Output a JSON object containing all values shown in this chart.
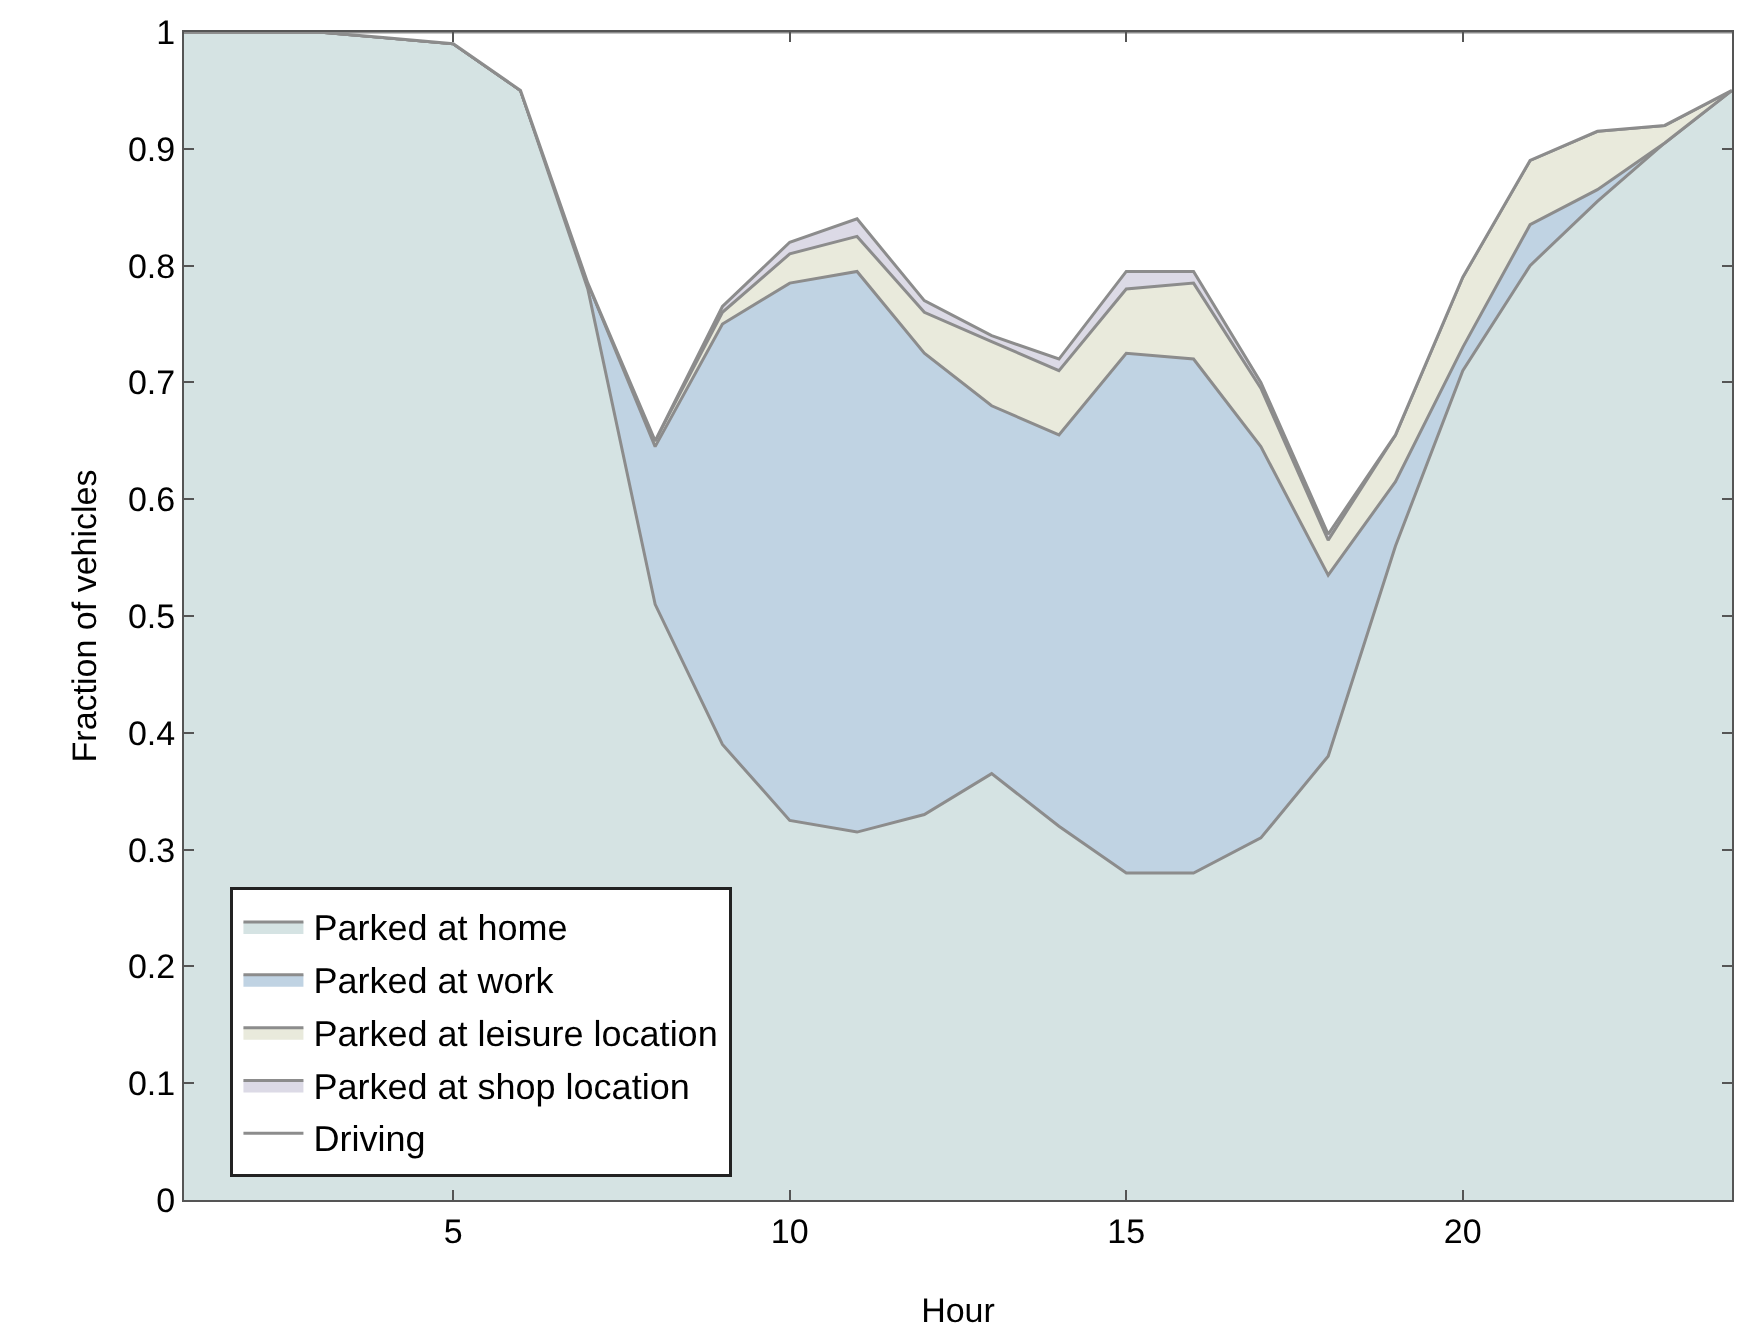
{
  "chart_data": {
    "type": "area",
    "stacked": true,
    "xlabel": "Hour",
    "ylabel": "Fraction of vehicles",
    "x": [
      1,
      2,
      3,
      4,
      5,
      6,
      7,
      8,
      9,
      10,
      11,
      12,
      13,
      14,
      15,
      16,
      17,
      18,
      19,
      20,
      21,
      22,
      23,
      24
    ],
    "xlim": [
      1,
      24
    ],
    "xticks": [
      5,
      10,
      15,
      20
    ],
    "ylim": [
      0,
      1
    ],
    "yticks": [
      0,
      0.1,
      0.2,
      0.3,
      0.4,
      0.5,
      0.6,
      0.7,
      0.8,
      0.9,
      1
    ],
    "legend": "bottom left",
    "marker": "none",
    "line_style": "solid",
    "series": [
      {
        "name": "Parked at home",
        "color": "#d5e3e3",
        "values": [
          1,
          1,
          1,
          0.995,
          0.99,
          0.95,
          0.78,
          0.51,
          0.39,
          0.325,
          0.315,
          0.33,
          0.365,
          0.32,
          0.28,
          0.28,
          0.31,
          0.38,
          0.56,
          0.71,
          0.8,
          0.855,
          0.905,
          0.95
        ]
      },
      {
        "name": "Parked at work",
        "color": "#c0d3e3",
        "values": [
          0,
          0,
          0,
          0,
          0,
          0,
          0.005,
          0.135,
          0.36,
          0.46,
          0.48,
          0.395,
          0.315,
          0.335,
          0.445,
          0.44,
          0.335,
          0.155,
          0.055,
          0.02,
          0.035,
          0.01,
          0,
          0
        ]
      },
      {
        "name": "Parked at leisure location",
        "color": "#e9eadc",
        "values": [
          0,
          0,
          0,
          0,
          0,
          0,
          0,
          0.005,
          0.01,
          0.025,
          0.03,
          0.035,
          0.055,
          0.055,
          0.055,
          0.065,
          0.05,
          0.03,
          0.04,
          0.06,
          0.055,
          0.05,
          0.015,
          0
        ]
      },
      {
        "name": "Parked at shop location",
        "color": "#dcdae6",
        "values": [
          0,
          0,
          0,
          0,
          0,
          0,
          0,
          0,
          0.005,
          0.01,
          0.015,
          0.01,
          0.005,
          0.01,
          0.015,
          0.01,
          0.005,
          0.005,
          0,
          0,
          0,
          0,
          0,
          0
        ]
      },
      {
        "name": "Driving",
        "color": "#ffffff",
        "values": [
          0,
          0,
          0,
          0.005,
          0.01,
          0.05,
          0.215,
          0.35,
          0.235,
          0.18,
          0.16,
          0.23,
          0.26,
          0.28,
          0.205,
          0.205,
          0.3,
          0.43,
          0.345,
          0.21,
          0.11,
          0.085,
          0.08,
          0.05
        ]
      }
    ]
  }
}
